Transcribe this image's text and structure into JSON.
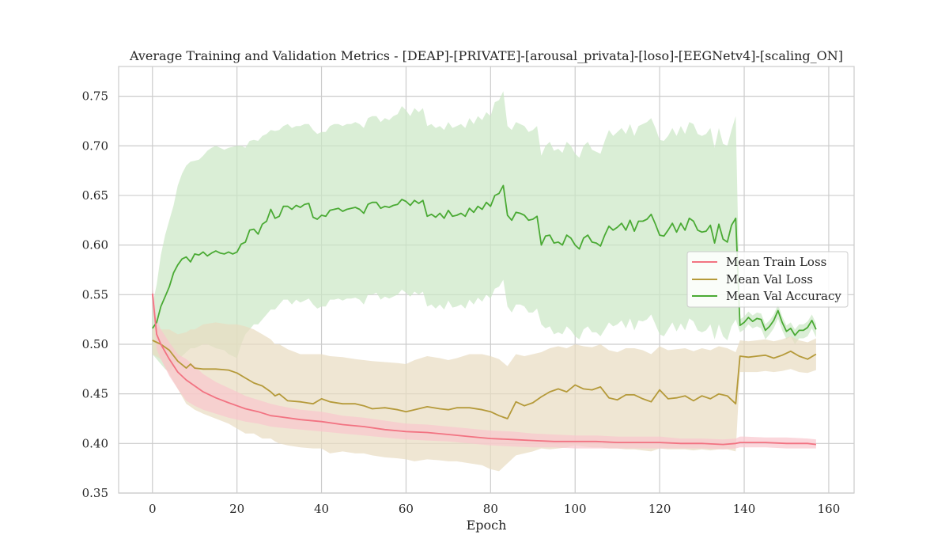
{
  "chart_data": {
    "type": "line",
    "title": "Average Training and Validation Metrics - [DEAP]-[PRIVATE]-[arousal_privata]-[loso]-[EEGNetv4]-[scaling_ON]",
    "xlabel": "Epoch",
    "ylabel": "",
    "xlim": [
      -8,
      166
    ],
    "ylim": [
      0.35,
      0.78
    ],
    "xticks": [
      0,
      20,
      40,
      60,
      80,
      100,
      120,
      140,
      160
    ],
    "yticks": [
      0.35,
      0.4,
      0.45,
      0.5,
      0.55,
      0.6,
      0.65,
      0.7,
      0.75
    ],
    "grid": true,
    "legend_position": "center-right",
    "series": [
      {
        "name": "Mean Train Loss",
        "color": "#f27382",
        "band_color": "#f9c6cd",
        "x": [
          0,
          1,
          2,
          4,
          6,
          8,
          10,
          12,
          15,
          18,
          20,
          22,
          25,
          28,
          30,
          35,
          40,
          45,
          50,
          55,
          60,
          65,
          70,
          75,
          80,
          85,
          90,
          95,
          100,
          105,
          110,
          115,
          120,
          125,
          130,
          135,
          138,
          139,
          140,
          145,
          150,
          155,
          157
        ],
        "values": [
          0.551,
          0.51,
          0.5,
          0.485,
          0.472,
          0.464,
          0.458,
          0.452,
          0.446,
          0.441,
          0.438,
          0.435,
          0.432,
          0.428,
          0.427,
          0.424,
          0.422,
          0.419,
          0.417,
          0.414,
          0.412,
          0.411,
          0.409,
          0.407,
          0.405,
          0.404,
          0.403,
          0.402,
          0.402,
          0.402,
          0.401,
          0.401,
          0.401,
          0.4,
          0.4,
          0.399,
          0.4,
          0.401,
          0.401,
          0.401,
          0.4,
          0.4,
          0.399
        ],
        "band_low": [
          0.54,
          0.495,
          0.485,
          0.468,
          0.455,
          0.443,
          0.438,
          0.434,
          0.43,
          0.426,
          0.424,
          0.422,
          0.42,
          0.417,
          0.416,
          0.414,
          0.412,
          0.41,
          0.408,
          0.406,
          0.404,
          0.403,
          0.402,
          0.4,
          0.398,
          0.397,
          0.396,
          0.396,
          0.395,
          0.395,
          0.395,
          0.395,
          0.395,
          0.395,
          0.395,
          0.394,
          0.395,
          0.396,
          0.396,
          0.396,
          0.395,
          0.395,
          0.395
        ],
        "band_high": [
          0.56,
          0.525,
          0.515,
          0.502,
          0.49,
          0.485,
          0.478,
          0.47,
          0.462,
          0.456,
          0.452,
          0.448,
          0.444,
          0.44,
          0.438,
          0.434,
          0.432,
          0.428,
          0.426,
          0.423,
          0.42,
          0.419,
          0.417,
          0.415,
          0.413,
          0.412,
          0.41,
          0.409,
          0.408,
          0.408,
          0.407,
          0.407,
          0.407,
          0.405,
          0.405,
          0.404,
          0.405,
          0.407,
          0.407,
          0.406,
          0.406,
          0.405,
          0.404
        ]
      },
      {
        "name": "Mean Val Loss",
        "color": "#b59a3a",
        "band_color": "#e8dcc0",
        "x": [
          0,
          2,
          4,
          6,
          8,
          9,
          10,
          12,
          15,
          18,
          20,
          22,
          24,
          26,
          28,
          29,
          30,
          32,
          35,
          38,
          40,
          42,
          45,
          48,
          50,
          52,
          55,
          58,
          60,
          62,
          65,
          68,
          70,
          72,
          75,
          78,
          80,
          82,
          84,
          86,
          88,
          90,
          92,
          94,
          96,
          98,
          100,
          102,
          104,
          106,
          108,
          110,
          112,
          114,
          116,
          118,
          120,
          122,
          124,
          126,
          128,
          130,
          132,
          134,
          136,
          138,
          139,
          141,
          143,
          145,
          147,
          149,
          151,
          153,
          155,
          157
        ],
        "values": [
          0.504,
          0.5,
          0.494,
          0.483,
          0.476,
          0.48,
          0.476,
          0.475,
          0.475,
          0.474,
          0.471,
          0.466,
          0.461,
          0.458,
          0.452,
          0.448,
          0.45,
          0.443,
          0.442,
          0.44,
          0.445,
          0.442,
          0.44,
          0.44,
          0.438,
          0.435,
          0.436,
          0.434,
          0.432,
          0.434,
          0.437,
          0.435,
          0.434,
          0.436,
          0.436,
          0.434,
          0.432,
          0.428,
          0.425,
          0.442,
          0.438,
          0.441,
          0.447,
          0.452,
          0.455,
          0.452,
          0.459,
          0.455,
          0.454,
          0.457,
          0.446,
          0.444,
          0.449,
          0.449,
          0.445,
          0.442,
          0.454,
          0.445,
          0.446,
          0.448,
          0.443,
          0.448,
          0.445,
          0.45,
          0.448,
          0.44,
          0.488,
          0.487,
          0.488,
          0.489,
          0.486,
          0.489,
          0.493,
          0.488,
          0.485,
          0.49
        ],
        "band_low": [
          0.49,
          0.485,
          0.47,
          0.455,
          0.44,
          0.437,
          0.434,
          0.43,
          0.425,
          0.42,
          0.415,
          0.41,
          0.41,
          0.405,
          0.405,
          0.402,
          0.4,
          0.398,
          0.396,
          0.395,
          0.395,
          0.39,
          0.392,
          0.39,
          0.39,
          0.388,
          0.386,
          0.385,
          0.384,
          0.382,
          0.384,
          0.383,
          0.382,
          0.382,
          0.38,
          0.378,
          0.374,
          0.372,
          0.38,
          0.388,
          0.39,
          0.392,
          0.395,
          0.394,
          0.395,
          0.396,
          0.398,
          0.397,
          0.396,
          0.396,
          0.395,
          0.395,
          0.394,
          0.394,
          0.393,
          0.392,
          0.395,
          0.394,
          0.394,
          0.394,
          0.393,
          0.394,
          0.393,
          0.394,
          0.394,
          0.392,
          0.472,
          0.472,
          0.472,
          0.473,
          0.472,
          0.473,
          0.475,
          0.472,
          0.471,
          0.474
        ],
        "band_high": [
          0.52,
          0.515,
          0.515,
          0.51,
          0.512,
          0.515,
          0.515,
          0.52,
          0.522,
          0.52,
          0.52,
          0.518,
          0.515,
          0.51,
          0.505,
          0.5,
          0.5,
          0.495,
          0.49,
          0.49,
          0.49,
          0.488,
          0.487,
          0.485,
          0.484,
          0.483,
          0.482,
          0.481,
          0.48,
          0.484,
          0.488,
          0.486,
          0.484,
          0.486,
          0.49,
          0.49,
          0.488,
          0.485,
          0.478,
          0.49,
          0.488,
          0.49,
          0.492,
          0.496,
          0.498,
          0.496,
          0.5,
          0.498,
          0.497,
          0.5,
          0.494,
          0.492,
          0.496,
          0.496,
          0.494,
          0.49,
          0.498,
          0.494,
          0.495,
          0.496,
          0.493,
          0.496,
          0.494,
          0.498,
          0.496,
          0.492,
          0.504,
          0.503,
          0.504,
          0.505,
          0.503,
          0.505,
          0.508,
          0.504,
          0.502,
          0.506
        ]
      },
      {
        "name": "Mean Val Accuracy",
        "color": "#4aaa34",
        "band_color": "#cbe7c4",
        "x": [
          0,
          1,
          2,
          3,
          4,
          5,
          6,
          7,
          8,
          9,
          10,
          11,
          12,
          13,
          14,
          15,
          16,
          17,
          18,
          19,
          20,
          21,
          22,
          23,
          24,
          25,
          26,
          27,
          28,
          29,
          30,
          31,
          32,
          33,
          34,
          35,
          36,
          37,
          38,
          39,
          40,
          41,
          42,
          43,
          44,
          45,
          46,
          47,
          48,
          49,
          50,
          51,
          52,
          53,
          54,
          55,
          56,
          57,
          58,
          59,
          60,
          61,
          62,
          63,
          64,
          65,
          66,
          67,
          68,
          69,
          70,
          71,
          72,
          73,
          74,
          75,
          76,
          77,
          78,
          79,
          80,
          81,
          82,
          83,
          84,
          85,
          86,
          87,
          88,
          89,
          90,
          91,
          92,
          93,
          94,
          95,
          96,
          97,
          98,
          99,
          100,
          101,
          102,
          103,
          104,
          105,
          106,
          107,
          108,
          109,
          110,
          111,
          112,
          113,
          114,
          115,
          116,
          117,
          118,
          119,
          120,
          121,
          122,
          123,
          124,
          125,
          126,
          127,
          128,
          129,
          130,
          131,
          132,
          133,
          134,
          135,
          136,
          137,
          138,
          139,
          140,
          141,
          142,
          143,
          144,
          145,
          146,
          147,
          148,
          149,
          150,
          151,
          152,
          153,
          154,
          155,
          156,
          157
        ],
        "values": [
          0.516,
          0.522,
          0.538,
          0.548,
          0.558,
          0.572,
          0.58,
          0.586,
          0.588,
          0.583,
          0.591,
          0.59,
          0.593,
          0.589,
          0.592,
          0.594,
          0.592,
          0.591,
          0.593,
          0.591,
          0.593,
          0.601,
          0.603,
          0.615,
          0.616,
          0.611,
          0.621,
          0.624,
          0.636,
          0.627,
          0.629,
          0.639,
          0.639,
          0.636,
          0.64,
          0.638,
          0.641,
          0.642,
          0.628,
          0.626,
          0.63,
          0.629,
          0.635,
          0.636,
          0.637,
          0.634,
          0.636,
          0.637,
          0.638,
          0.636,
          0.632,
          0.641,
          0.643,
          0.643,
          0.637,
          0.639,
          0.638,
          0.64,
          0.641,
          0.646,
          0.644,
          0.64,
          0.645,
          0.642,
          0.645,
          0.629,
          0.631,
          0.628,
          0.632,
          0.627,
          0.635,
          0.629,
          0.63,
          0.632,
          0.629,
          0.637,
          0.633,
          0.639,
          0.636,
          0.643,
          0.639,
          0.65,
          0.652,
          0.66,
          0.63,
          0.625,
          0.633,
          0.632,
          0.63,
          0.625,
          0.626,
          0.629,
          0.6,
          0.609,
          0.61,
          0.602,
          0.603,
          0.6,
          0.61,
          0.607,
          0.6,
          0.596,
          0.607,
          0.61,
          0.603,
          0.602,
          0.599,
          0.61,
          0.619,
          0.615,
          0.618,
          0.622,
          0.615,
          0.625,
          0.614,
          0.624,
          0.624,
          0.626,
          0.631,
          0.621,
          0.61,
          0.609,
          0.615,
          0.622,
          0.613,
          0.622,
          0.615,
          0.627,
          0.624,
          0.615,
          0.613,
          0.614,
          0.62,
          0.602,
          0.621,
          0.606,
          0.603,
          0.62,
          0.627,
          0.519,
          0.522,
          0.527,
          0.523,
          0.526,
          0.525,
          0.514,
          0.518,
          0.524,
          0.534,
          0.522,
          0.513,
          0.516,
          0.509,
          0.514,
          0.514,
          0.517,
          0.524,
          0.515
        ],
        "band_low": [
          0.49,
          0.485,
          0.48,
          0.475,
          0.472,
          0.478,
          0.485,
          0.488,
          0.492,
          0.496,
          0.496,
          0.498,
          0.5,
          0.5,
          0.498,
          0.496,
          0.495,
          0.494,
          0.49,
          0.488,
          0.486,
          0.5,
          0.51,
          0.515,
          0.52,
          0.52,
          0.525,
          0.53,
          0.535,
          0.535,
          0.54,
          0.545,
          0.545,
          0.54,
          0.545,
          0.542,
          0.544,
          0.546,
          0.54,
          0.536,
          0.538,
          0.538,
          0.545,
          0.545,
          0.546,
          0.544,
          0.546,
          0.546,
          0.547,
          0.545,
          0.54,
          0.55,
          0.55,
          0.552,
          0.545,
          0.548,
          0.546,
          0.548,
          0.55,
          0.555,
          0.552,
          0.548,
          0.553,
          0.55,
          0.553,
          0.538,
          0.54,
          0.536,
          0.54,
          0.535,
          0.544,
          0.537,
          0.538,
          0.54,
          0.536,
          0.545,
          0.54,
          0.547,
          0.543,
          0.55,
          0.546,
          0.556,
          0.558,
          0.565,
          0.538,
          0.532,
          0.54,
          0.54,
          0.538,
          0.532,
          0.532,
          0.536,
          0.52,
          0.516,
          0.518,
          0.51,
          0.512,
          0.51,
          0.518,
          0.514,
          0.508,
          0.505,
          0.515,
          0.518,
          0.512,
          0.512,
          0.508,
          0.515,
          0.522,
          0.518,
          0.52,
          0.524,
          0.516,
          0.526,
          0.514,
          0.524,
          0.523,
          0.525,
          0.53,
          0.52,
          0.51,
          0.508,
          0.515,
          0.522,
          0.513,
          0.521,
          0.514,
          0.526,
          0.523,
          0.514,
          0.512,
          0.514,
          0.52,
          0.505,
          0.52,
          0.508,
          0.504,
          0.518,
          0.525,
          0.512,
          0.515,
          0.52,
          0.516,
          0.518,
          0.516,
          0.505,
          0.51,
          0.516,
          0.526,
          0.514,
          0.505,
          0.508,
          0.5,
          0.506,
          0.506,
          0.508,
          0.516,
          0.507
        ],
        "band_high": [
          0.54,
          0.56,
          0.59,
          0.61,
          0.625,
          0.64,
          0.66,
          0.672,
          0.68,
          0.684,
          0.685,
          0.686,
          0.69,
          0.695,
          0.698,
          0.7,
          0.698,
          0.696,
          0.698,
          0.699,
          0.7,
          0.7,
          0.698,
          0.705,
          0.706,
          0.705,
          0.71,
          0.712,
          0.716,
          0.715,
          0.716,
          0.72,
          0.722,
          0.718,
          0.72,
          0.72,
          0.722,
          0.722,
          0.716,
          0.712,
          0.714,
          0.714,
          0.72,
          0.722,
          0.722,
          0.72,
          0.722,
          0.722,
          0.724,
          0.722,
          0.718,
          0.728,
          0.73,
          0.73,
          0.724,
          0.728,
          0.726,
          0.73,
          0.732,
          0.74,
          0.736,
          0.73,
          0.738,
          0.734,
          0.738,
          0.72,
          0.722,
          0.718,
          0.72,
          0.716,
          0.724,
          0.718,
          0.72,
          0.722,
          0.718,
          0.728,
          0.722,
          0.73,
          0.726,
          0.734,
          0.73,
          0.744,
          0.746,
          0.755,
          0.72,
          0.716,
          0.724,
          0.722,
          0.72,
          0.714,
          0.716,
          0.72,
          0.69,
          0.7,
          0.704,
          0.695,
          0.697,
          0.693,
          0.704,
          0.7,
          0.692,
          0.688,
          0.7,
          0.704,
          0.696,
          0.694,
          0.692,
          0.705,
          0.716,
          0.71,
          0.714,
          0.718,
          0.712,
          0.722,
          0.71,
          0.72,
          0.722,
          0.724,
          0.728,
          0.718,
          0.706,
          0.705,
          0.71,
          0.718,
          0.71,
          0.72,
          0.712,
          0.724,
          0.722,
          0.712,
          0.71,
          0.712,
          0.718,
          0.698,
          0.718,
          0.702,
          0.7,
          0.716,
          0.73,
          0.525,
          0.528,
          0.533,
          0.529,
          0.532,
          0.531,
          0.52,
          0.524,
          0.53,
          0.54,
          0.528,
          0.519,
          0.522,
          0.515,
          0.52,
          0.52,
          0.523,
          0.53,
          0.521
        ]
      }
    ]
  }
}
